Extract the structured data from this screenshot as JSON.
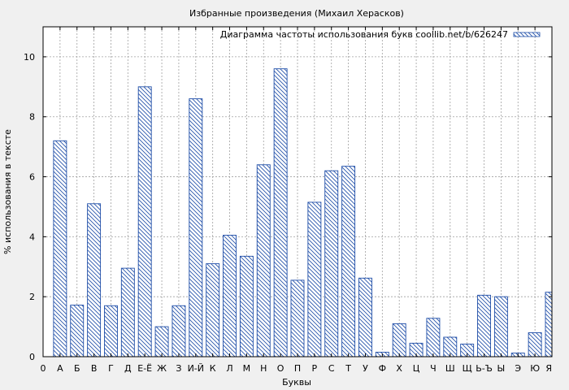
{
  "chart_data": {
    "type": "bar",
    "title": "Избранные произведения (Михаил Херасков)",
    "xlabel": "Буквы",
    "ylabel": "% использования в тексте",
    "legend": {
      "label": "Диаграмма частоты использования букв coollib.net/b/626247",
      "position": "top-right"
    },
    "x_ticks": [
      "0",
      "А",
      "Б",
      "В",
      "Г",
      "Д",
      "Е-Ё",
      "Ж",
      "З",
      "И-Й",
      "К",
      "Л",
      "М",
      "Н",
      "О",
      "П",
      "Р",
      "С",
      "Т",
      "У",
      "Ф",
      "Х",
      "Ц",
      "Ч",
      "Ш",
      "Щ",
      "Ь-Ъ",
      "Ы",
      "Э",
      "Ю",
      "Я"
    ],
    "categories": [
      "А",
      "Б",
      "В",
      "Г",
      "Д",
      "Е-Ё",
      "Ж",
      "З",
      "И-Й",
      "К",
      "Л",
      "М",
      "Н",
      "О",
      "П",
      "Р",
      "С",
      "Т",
      "У",
      "Ф",
      "Х",
      "Ц",
      "Ч",
      "Ш",
      "Щ",
      "Ь-Ъ",
      "Ы",
      "Э",
      "Ю",
      "Я"
    ],
    "values": [
      7.2,
      1.72,
      5.1,
      1.7,
      2.95,
      9.0,
      1.0,
      1.7,
      8.6,
      3.1,
      4.05,
      3.35,
      6.4,
      9.6,
      2.55,
      5.15,
      6.2,
      6.35,
      2.62,
      0.15,
      1.1,
      0.45,
      1.28,
      0.65,
      0.42,
      2.05,
      2.0,
      0.12,
      0.8,
      2.15
    ],
    "y_ticks": [
      0,
      2,
      4,
      6,
      8,
      10
    ],
    "ylim": [
      0,
      11
    ],
    "grid": true,
    "colors": {
      "bar_stroke": "#1f4ea8",
      "hatch": "#1f4ea8",
      "bar_fill": "#ffffff",
      "background": "#f0f0f0",
      "plot_background": "#ffffff",
      "grid": "#a0a0a0"
    }
  }
}
